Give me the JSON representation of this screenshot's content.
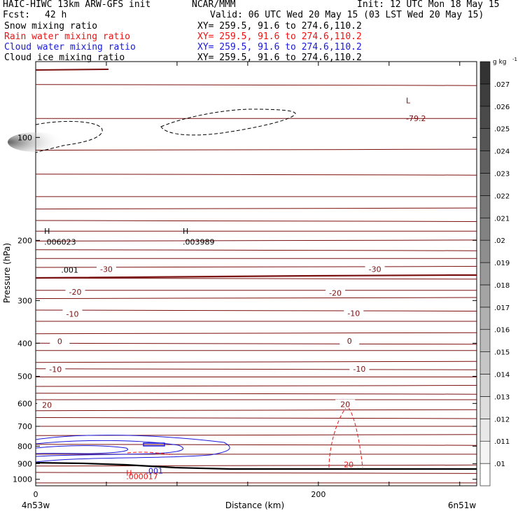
{
  "header": {
    "model_title": "HAIC-HIWC 13km ARW-GFS init",
    "center": "NCAR/MMM",
    "init": "Init: 12 UTC Mon 18 May 15",
    "fcst_label": "Fcst:",
    "fcst_hours": "42 h",
    "valid": "Valid: 06 UTC Wed 20 May 15 (03 LST Wed 20 May 15)",
    "fields": [
      {
        "name": "Snow mixing ratio",
        "xy": "XY= 259.5, 91.6 to 274.6,110.2",
        "color": "#000000"
      },
      {
        "name": "Rain water mixing ratio",
        "xy": "XY= 259.5, 91.6 to 274.6,110.2",
        "color": "#ee1111"
      },
      {
        "name": "Cloud water mixing ratio",
        "xy": "XY= 259.5, 91.6 to 274.6,110.2",
        "color": "#1818dd"
      },
      {
        "name": "Cloud ice mixing ratio",
        "xy": "XY= 259.5, 91.6 to 274.6,110.2",
        "color": "#000000"
      }
    ]
  },
  "chart_data": {
    "type": "heatmap",
    "xlabel": "Distance (km)",
    "ylabel": "Pressure (hPa)",
    "xlim": [
      0,
      312
    ],
    "ylim": [
      1045,
      60
    ],
    "y_scale": "log-pressure",
    "x_ticks": [
      0,
      200
    ],
    "y_ticks": [
      100,
      200,
      300,
      400,
      500,
      600,
      700,
      800,
      900,
      1000
    ],
    "x_endpoints": [
      "4n53w",
      "6n51w"
    ],
    "colorbar": {
      "unit": "g kg",
      "unit_exponent": "-1",
      "levels": [
        ".01",
        ".011",
        ".012",
        ".013",
        ".014",
        ".015",
        ".016",
        ".017",
        ".018",
        ".019",
        ".02",
        ".021",
        ".022",
        ".023",
        ".024",
        ".025",
        ".026",
        ".027"
      ]
    },
    "contour_color": "#7a1010",
    "temperature_isotherms": [
      {
        "value": "-30",
        "label_positions": [
          [
            50,
            243
          ],
          [
            240,
            243
          ]
        ]
      },
      {
        "value": "-20",
        "label_positions": [
          [
            28,
            283
          ],
          [
            212,
            285
          ]
        ]
      },
      {
        "value": "-10",
        "label_positions": [
          [
            26,
            328
          ],
          [
            225,
            327
          ]
        ]
      },
      {
        "value": "0",
        "label_positions": [
          [
            17,
            395
          ],
          [
            222,
            394
          ]
        ]
      },
      {
        "value": "-10",
        "label_positions": [
          [
            14,
            477
          ],
          [
            229,
            476
          ]
        ]
      },
      {
        "value": "20",
        "label_positions": [
          [
            8,
            606
          ],
          [
            219,
            604
          ]
        ]
      }
    ],
    "isobar_lines_hpa": [
      70,
      88,
      109,
      128,
      149,
      162,
      175,
      188,
      201,
      213,
      226,
      240,
      258,
      280,
      296,
      320,
      345,
      375,
      400,
      420,
      455,
      475,
      502,
      535,
      560,
      585,
      630,
      660,
      700,
      745,
      790,
      845,
      915,
      955,
      1025
    ],
    "annotations": [
      {
        "text": "L",
        "x": 262,
        "hpa": 78
      },
      {
        "text": "-79.2",
        "x": 262,
        "hpa": 88
      },
      {
        "text": "H",
        "x": 6,
        "hpa": 188
      },
      {
        "text": ".006023",
        "x": 6,
        "hpa": 202
      },
      {
        "text": ".001",
        "x": 18,
        "hpa": 244
      },
      {
        "text": "H",
        "x": 104,
        "hpa": 188
      },
      {
        "text": ".003989",
        "x": 104,
        "hpa": 202
      },
      {
        "text": ".001",
        "x": 78,
        "hpa": 944
      },
      {
        "text": "H",
        "x": 64,
        "hpa": 958
      },
      {
        "text": ".000017",
        "x": 64,
        "hpa": 980
      },
      {
        "text": "20",
        "x": 218,
        "hpa": 906
      }
    ]
  }
}
